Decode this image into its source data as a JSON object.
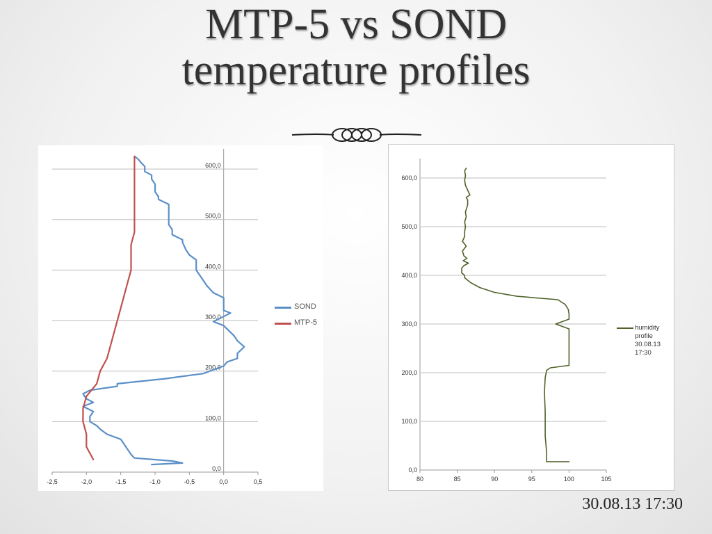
{
  "slide": {
    "title_line1": "MTP-5 vs SOND",
    "title_line2": "temperature profiles",
    "timestamp": "30.08.13 17:30"
  },
  "chart_data": [
    {
      "type": "line",
      "title": "",
      "xlabel": "",
      "ylabel": "",
      "xlim": [
        -2.5,
        0.5
      ],
      "ylim": [
        0,
        640
      ],
      "x_ticks": [
        "-2,5",
        "-2,0",
        "-1,5",
        "-1,0",
        "-0,5",
        "0,0",
        "0,5"
      ],
      "y_ticks": [
        "0,0",
        "100,0",
        "200,0",
        "300,0",
        "400,0",
        "500,0",
        "600,0"
      ],
      "grid": "horizontal",
      "legend": "right",
      "series": [
        {
          "name": "SOND",
          "color": "#5b8fc8",
          "points": [
            [
              -1.05,
              15
            ],
            [
              -0.6,
              18
            ],
            [
              -0.75,
              22
            ],
            [
              -1.3,
              28
            ],
            [
              -1.35,
              35
            ],
            [
              -1.4,
              45
            ],
            [
              -1.45,
              55
            ],
            [
              -1.5,
              65
            ],
            [
              -1.7,
              75
            ],
            [
              -1.8,
              85
            ],
            [
              -1.85,
              92
            ],
            [
              -1.95,
              100
            ],
            [
              -1.95,
              110
            ],
            [
              -1.9,
              120
            ],
            [
              -2.05,
              130
            ],
            [
              -1.9,
              138
            ],
            [
              -2.0,
              145
            ],
            [
              -2.05,
              155
            ],
            [
              -1.95,
              162
            ],
            [
              -1.55,
              170
            ],
            [
              -1.55,
              175
            ],
            [
              -0.85,
              185
            ],
            [
              -0.3,
              195
            ],
            [
              0.0,
              210
            ],
            [
              0.05,
              218
            ],
            [
              0.2,
              225
            ],
            [
              0.2,
              235
            ],
            [
              0.3,
              248
            ],
            [
              0.2,
              260
            ],
            [
              0.15,
              270
            ],
            [
              0.0,
              290
            ],
            [
              -0.15,
              298
            ],
            [
              0.0,
              308
            ],
            [
              0.1,
              315
            ],
            [
              0.0,
              320
            ],
            [
              0.0,
              335
            ],
            [
              0.0,
              345
            ],
            [
              -0.15,
              355
            ],
            [
              -0.25,
              370
            ],
            [
              -0.3,
              380
            ],
            [
              -0.35,
              390
            ],
            [
              -0.4,
              400
            ],
            [
              -0.4,
              420
            ],
            [
              -0.5,
              430
            ],
            [
              -0.55,
              440
            ],
            [
              -0.6,
              455
            ],
            [
              -0.6,
              460
            ],
            [
              -0.75,
              470
            ],
            [
              -0.75,
              480
            ],
            [
              -0.8,
              490
            ],
            [
              -0.8,
              500
            ],
            [
              -0.8,
              510
            ],
            [
              -0.8,
              530
            ],
            [
              -0.95,
              540
            ],
            [
              -0.95,
              545
            ],
            [
              -1.0,
              555
            ],
            [
              -1.0,
              570
            ],
            [
              -1.05,
              580
            ],
            [
              -1.05,
              588
            ],
            [
              -1.15,
              595
            ],
            [
              -1.15,
              605
            ],
            [
              -1.2,
              612
            ],
            [
              -1.25,
              620
            ],
            [
              -1.3,
              625
            ]
          ]
        },
        {
          "name": "MTP-5",
          "color": "#c0504d",
          "points": [
            [
              -1.9,
              25
            ],
            [
              -2.0,
              50
            ],
            [
              -2.0,
              75
            ],
            [
              -2.05,
              100
            ],
            [
              -2.05,
              125
            ],
            [
              -2.0,
              150
            ],
            [
              -1.85,
              175
            ],
            [
              -1.8,
              200
            ],
            [
              -1.7,
              225
            ],
            [
              -1.6,
              275
            ],
            [
              -1.5,
              325
            ],
            [
              -1.4,
              375
            ],
            [
              -1.35,
              400
            ],
            [
              -1.35,
              425
            ],
            [
              -1.35,
              450
            ],
            [
              -1.3,
              475
            ],
            [
              -1.3,
              500
            ],
            [
              -1.3,
              550
            ],
            [
              -1.3,
              600
            ],
            [
              -1.3,
              625
            ]
          ]
        }
      ]
    },
    {
      "type": "line",
      "title": "",
      "xlabel": "",
      "ylabel": "",
      "xlim": [
        80,
        105
      ],
      "ylim": [
        0,
        640
      ],
      "x_ticks": [
        "80",
        "85",
        "90",
        "95",
        "100",
        "105"
      ],
      "y_ticks": [
        "0,0",
        "100,0",
        "200,0",
        "300,0",
        "400,0",
        "500,0",
        "600,0"
      ],
      "grid": "horizontal",
      "legend": "right",
      "series": [
        {
          "name": "humidity profile 30.08.13 17:30",
          "color": "#4f6228",
          "points": [
            [
              100,
              17
            ],
            [
              97,
              17
            ],
            [
              97,
              35
            ],
            [
              96.8,
              70
            ],
            [
              96.8,
              120
            ],
            [
              96.7,
              160
            ],
            [
              96.8,
              190
            ],
            [
              97,
              205
            ],
            [
              97.5,
              210
            ],
            [
              100,
              215
            ],
            [
              100,
              250
            ],
            [
              100,
              280
            ],
            [
              100,
              290
            ],
            [
              98.2,
              300
            ],
            [
              100,
              310
            ],
            [
              100,
              320
            ],
            [
              99.9,
              330
            ],
            [
              99.5,
              340
            ],
            [
              98.5,
              350
            ],
            [
              93,
              357
            ],
            [
              90,
              365
            ],
            [
              88,
              375
            ],
            [
              86.8,
              385
            ],
            [
              86,
              395
            ],
            [
              86,
              400
            ],
            [
              85.6,
              405
            ],
            [
              85.6,
              415
            ],
            [
              85.9,
              420
            ],
            [
              86.5,
              425
            ],
            [
              85.8,
              430
            ],
            [
              86.3,
              435
            ],
            [
              85.9,
              440
            ],
            [
              85.7,
              450
            ],
            [
              86.2,
              460
            ],
            [
              85.7,
              470
            ],
            [
              86,
              480
            ],
            [
              86,
              490
            ],
            [
              86.1,
              500
            ],
            [
              86.0,
              510
            ],
            [
              86.2,
              520
            ],
            [
              86.1,
              530
            ],
            [
              86.4,
              545
            ],
            [
              86.4,
              555
            ],
            [
              86.2,
              560
            ],
            [
              86.7,
              565
            ],
            [
              86.4,
              575
            ],
            [
              86.1,
              585
            ],
            [
              86,
              595
            ],
            [
              86.1,
              605
            ],
            [
              86,
              615
            ],
            [
              86.2,
              620
            ]
          ]
        }
      ]
    }
  ]
}
